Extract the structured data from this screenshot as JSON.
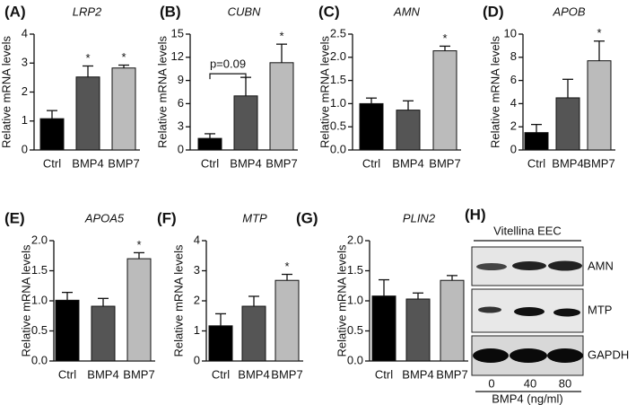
{
  "chart_data": [
    {
      "type": "bar",
      "panel": "(A)",
      "title": "LRP2",
      "y_label": "Relative mRNA levels",
      "categories": [
        "Ctrl",
        "BMP4",
        "BMP7"
      ],
      "values": [
        1.08,
        2.52,
        2.83
      ],
      "errors": [
        0.28,
        0.38,
        0.1
      ],
      "markers": [
        null,
        "*",
        "*"
      ],
      "colors": [
        "#000000",
        "#555555",
        "#bbbbbb"
      ],
      "ylim": [
        0,
        4
      ],
      "yticks": [
        0,
        1,
        2,
        3,
        4
      ]
    },
    {
      "type": "bar",
      "panel": "(B)",
      "title": "CUBN",
      "y_label": "Relative mRNA levels",
      "categories": [
        "Ctrl",
        "BMP4",
        "BMP7"
      ],
      "values": [
        1.5,
        7.0,
        11.3
      ],
      "errors": [
        0.6,
        2.4,
        2.4
      ],
      "markers": [
        null,
        null,
        "*"
      ],
      "annotation": "p=0.09",
      "colors": [
        "#000000",
        "#555555",
        "#bbbbbb"
      ],
      "ylim": [
        0,
        15
      ],
      "yticks": [
        0,
        3,
        6,
        9,
        12,
        15
      ]
    },
    {
      "type": "bar",
      "panel": "(C)",
      "title": "AMN",
      "y_label": "Relative mRNA levels",
      "categories": [
        "Ctrl",
        "BMP4",
        "BMP7"
      ],
      "values": [
        1.0,
        0.86,
        2.14
      ],
      "errors": [
        0.12,
        0.2,
        0.1
      ],
      "markers": [
        null,
        null,
        "*"
      ],
      "colors": [
        "#000000",
        "#555555",
        "#bbbbbb"
      ],
      "ylim": [
        0,
        2.5
      ],
      "yticks": [
        {
          "value": 0,
          "label": "0.0"
        },
        0.5,
        {
          "value": 1,
          "label": "1.0"
        },
        1.5,
        {
          "value": 2,
          "label": "2.0"
        },
        2.5
      ]
    },
    {
      "type": "bar",
      "panel": "(D)",
      "title": "APOB",
      "y_label": "Relative mRNA levels",
      "categories": [
        "Ctrl",
        "BMP4",
        "BMP7"
      ],
      "values": [
        1.5,
        4.5,
        7.7
      ],
      "errors": [
        0.7,
        1.6,
        1.7
      ],
      "markers": [
        null,
        null,
        "*"
      ],
      "colors": [
        "#000000",
        "#555555",
        "#bbbbbb"
      ],
      "ylim": [
        0,
        10
      ],
      "yticks": [
        0,
        2,
        4,
        6,
        8,
        10
      ]
    },
    {
      "type": "bar",
      "panel": "(E)",
      "title": "APOA5",
      "y_label": "Relative mRNA levels",
      "categories": [
        "Ctrl",
        "BMP4",
        "BMP7"
      ],
      "values": [
        1.01,
        0.91,
        1.7
      ],
      "errors": [
        0.13,
        0.13,
        0.1
      ],
      "markers": [
        null,
        null,
        "*"
      ],
      "colors": [
        "#000000",
        "#555555",
        "#bbbbbb"
      ],
      "ylim": [
        0,
        2
      ],
      "yticks": [
        {
          "value": 0,
          "label": "0.0"
        },
        0.5,
        {
          "value": 1,
          "label": "1.0"
        },
        1.5,
        {
          "value": 2,
          "label": "2.0"
        }
      ]
    },
    {
      "type": "bar",
      "panel": "(F)",
      "title": "MTP",
      "y_label": "Relative mRNA levels",
      "categories": [
        "Ctrl",
        "BMP4",
        "BMP7"
      ],
      "values": [
        1.17,
        1.82,
        2.68
      ],
      "errors": [
        0.4,
        0.33,
        0.2
      ],
      "markers": [
        null,
        null,
        "*"
      ],
      "colors": [
        "#000000",
        "#555555",
        "#bbbbbb"
      ],
      "ylim": [
        0,
        4
      ],
      "yticks": [
        0,
        1,
        2,
        3,
        4
      ]
    },
    {
      "type": "bar",
      "panel": "(G)",
      "title": "PLIN2",
      "y_label": "Relative mRNA levels",
      "categories": [
        "Ctrl",
        "BMP4",
        "BMP7"
      ],
      "values": [
        1.08,
        1.03,
        1.34
      ],
      "errors": [
        0.27,
        0.1,
        0.08
      ],
      "markers": [
        null,
        null,
        null
      ],
      "colors": [
        "#000000",
        "#555555",
        "#bbbbbb"
      ],
      "ylim": [
        0,
        2
      ],
      "yticks": [
        {
          "value": 0,
          "label": "0.0"
        },
        0.5,
        {
          "value": 1,
          "label": "1.0"
        },
        1.5,
        {
          "value": 2,
          "label": "2.0"
        }
      ]
    }
  ],
  "blot": {
    "panel": "(H)",
    "title": "Vitellina EEC",
    "rows": [
      "AMN",
      "MTP",
      "GAPDH"
    ],
    "lanes": [
      "0",
      "40",
      "80"
    ],
    "x_label": "BMP4 (ng/ml)"
  }
}
